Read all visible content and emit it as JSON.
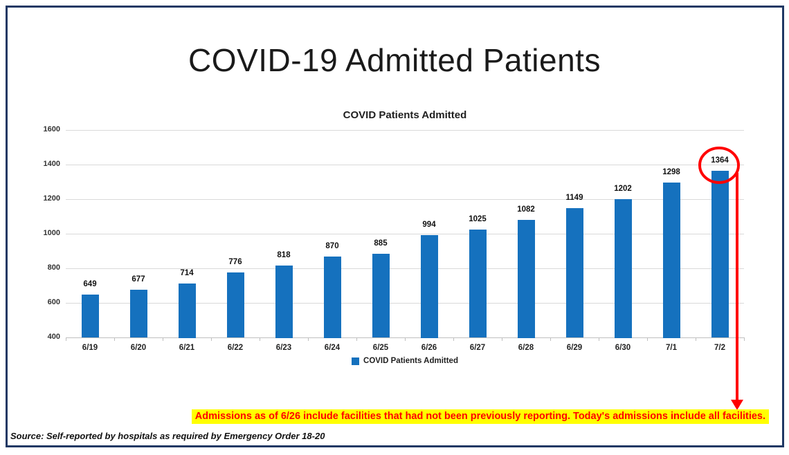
{
  "page": {
    "title": "COVID-19 Admitted Patients"
  },
  "chart_data": {
    "type": "bar",
    "title": "COVID Patients Admitted",
    "categories": [
      "6/19",
      "6/20",
      "6/21",
      "6/22",
      "6/23",
      "6/24",
      "6/25",
      "6/26",
      "6/27",
      "6/28",
      "6/29",
      "6/30",
      "7/1",
      "7/2"
    ],
    "series": [
      {
        "name": "COVID Patients Admitted",
        "values": [
          649,
          677,
          714,
          776,
          818,
          870,
          885,
          994,
          1025,
          1082,
          1149,
          1202,
          1298,
          1364
        ]
      }
    ],
    "ylim": [
      400,
      1600
    ],
    "yticks": [
      400,
      600,
      800,
      1000,
      1200,
      1400,
      1600
    ],
    "xlabel": "",
    "ylabel": "",
    "grid": true,
    "legend_position": "bottom",
    "bar_color": "#1571be",
    "annotation": {
      "circled_category": "7/2",
      "circled_value": 1364
    }
  },
  "legend": {
    "label": "COVID Patients Admitted",
    "swatch_color": "#1571be"
  },
  "callout": {
    "text": "Admissions as of 6/26 include facilities that had not been previously reporting. Today's admissions include all facilities.",
    "text_color": "#ff0000",
    "highlight_color": "#ffff00"
  },
  "source": {
    "text": "Source: Self-reported by hospitals as required by Emergency Order 18-20"
  },
  "colors": {
    "frame_border": "#1f3864",
    "bar": "#1571be",
    "annotation_red": "#ff0000",
    "gridline": "#d9d9d9"
  }
}
